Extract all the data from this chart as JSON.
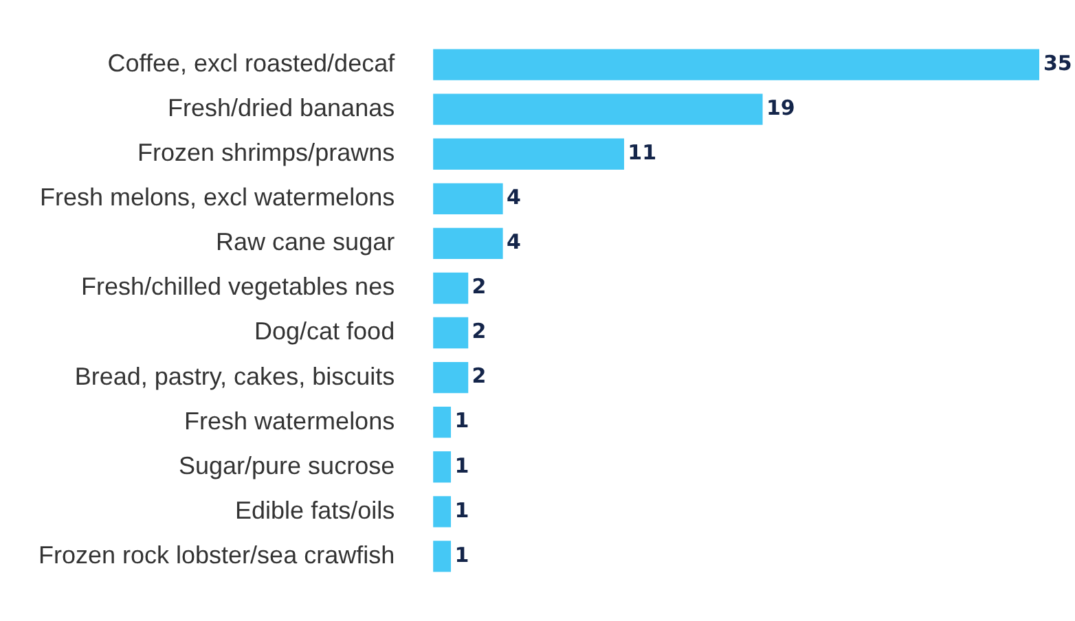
{
  "chart_data": {
    "type": "bar",
    "orientation": "horizontal",
    "data_labels": true,
    "color": "#45c8f5",
    "categories": [
      "Coffee, excl roasted/decaf",
      "Fresh/dried bananas",
      "Frozen shrimps/prawns",
      "Fresh melons, excl watermelons",
      "Raw cane sugar",
      "Fresh/chilled vegetables nes",
      "Dog/cat food",
      "Bread, pastry, cakes, biscuits",
      "Fresh watermelons",
      "Sugar/pure sucrose",
      "Edible fats/oils",
      "Frozen rock lobster/sea crawfish"
    ],
    "values": [
      35,
      19,
      11,
      4,
      4,
      2,
      2,
      2,
      1,
      1,
      1,
      1
    ]
  }
}
